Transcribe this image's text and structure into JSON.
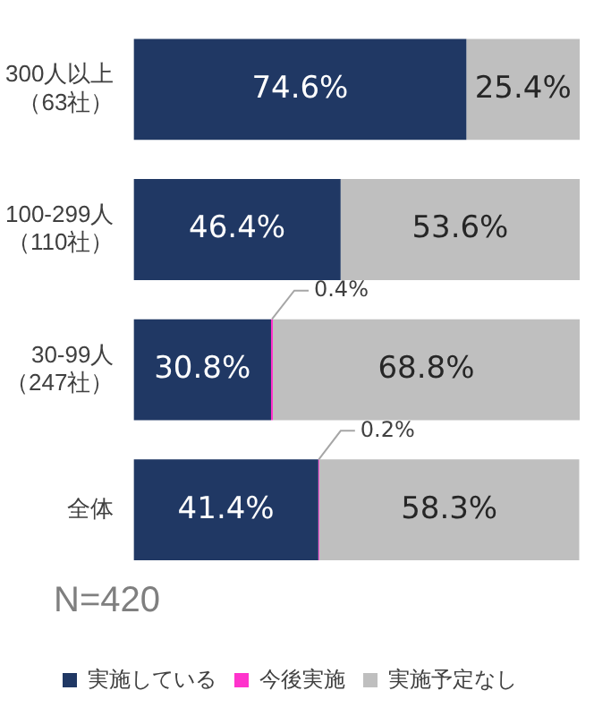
{
  "chart_data": {
    "type": "bar",
    "orientation": "horizontal",
    "stacked": true,
    "categories": [
      "300人以上（63社）",
      "100-299人（110社）",
      "30-99人（247社）",
      "全体"
    ],
    "series": [
      {
        "name": "実施している",
        "color": "#203864",
        "values": [
          74.6,
          46.4,
          30.8,
          41.4
        ],
        "value_labels": [
          "74.6%",
          "46.4%",
          "30.8%",
          "41.4%"
        ]
      },
      {
        "name": "今後実施",
        "color": "#ff33cc",
        "values": [
          null,
          null,
          0.4,
          0.2
        ],
        "value_labels": [
          null,
          null,
          "0.4%",
          "0.2%"
        ]
      },
      {
        "name": "実施予定なし",
        "color": "#bfbfbf",
        "values": [
          25.4,
          53.6,
          68.8,
          58.3
        ],
        "value_labels": [
          "25.4%",
          "53.6%",
          "68.8%",
          "58.3%"
        ]
      }
    ],
    "tick_labels": "y",
    "legend": "bottom",
    "annotations": [
      "N=420"
    ]
  }
}
